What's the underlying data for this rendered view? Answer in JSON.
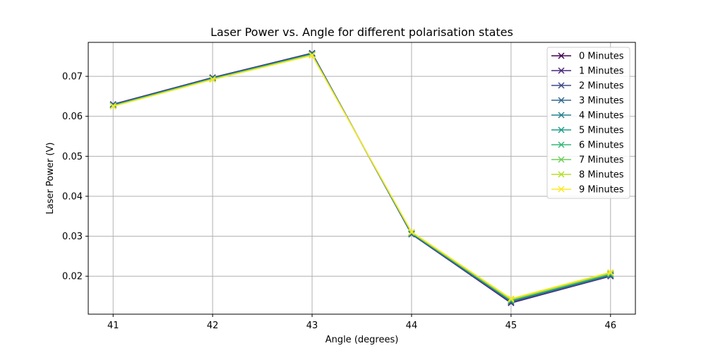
{
  "chart_data": {
    "type": "line",
    "title": "Laser Power vs. Angle for different polarisation states",
    "xlabel": "Angle (degrees)",
    "ylabel": "Laser Power (V)",
    "x": [
      41,
      42,
      43,
      44,
      45,
      46
    ],
    "xticks": [
      "41",
      "42",
      "43",
      "44",
      "45",
      "46"
    ],
    "yticks": [
      "0.02",
      "0.03",
      "0.04",
      "0.05",
      "0.06",
      "0.07"
    ],
    "xlim": [
      40.75,
      46.25
    ],
    "ylim": [
      0.0105,
      0.0785
    ],
    "grid": true,
    "legend_position": "top-right",
    "marker": "x",
    "series": [
      {
        "name": "0 Minutes",
        "color": "#440154",
        "values": [
          0.063,
          0.0697,
          0.0758,
          0.0305,
          0.0133,
          0.02
        ]
      },
      {
        "name": "1 Minutes",
        "color": "#482878",
        "values": [
          0.063,
          0.0697,
          0.0758,
          0.0305,
          0.0134,
          0.02
        ]
      },
      {
        "name": "2 Minutes",
        "color": "#3e4989",
        "values": [
          0.0629,
          0.0696,
          0.0757,
          0.0305,
          0.0135,
          0.0201
        ]
      },
      {
        "name": "3 Minutes",
        "color": "#31688e",
        "values": [
          0.0628,
          0.0695,
          0.0756,
          0.0306,
          0.0136,
          0.0202
        ]
      },
      {
        "name": "4 Minutes",
        "color": "#26828e",
        "values": [
          0.0628,
          0.0695,
          0.0756,
          0.0307,
          0.0138,
          0.0203
        ]
      },
      {
        "name": "5 Minutes",
        "color": "#1f9e89",
        "values": [
          0.0627,
          0.0694,
          0.0755,
          0.0308,
          0.0139,
          0.0205
        ]
      },
      {
        "name": "6 Minutes",
        "color": "#35b779",
        "values": [
          0.0627,
          0.0694,
          0.0754,
          0.0309,
          0.014,
          0.0206
        ]
      },
      {
        "name": "7 Minutes",
        "color": "#6ece58",
        "values": [
          0.0626,
          0.0693,
          0.0754,
          0.0309,
          0.0141,
          0.0207
        ]
      },
      {
        "name": "8 Minutes",
        "color": "#b5de2b",
        "values": [
          0.0625,
          0.0692,
          0.0753,
          0.031,
          0.0142,
          0.0208
        ]
      },
      {
        "name": "9 Minutes",
        "color": "#fde725",
        "values": [
          0.0625,
          0.0692,
          0.0752,
          0.0311,
          0.0144,
          0.021
        ]
      }
    ]
  }
}
